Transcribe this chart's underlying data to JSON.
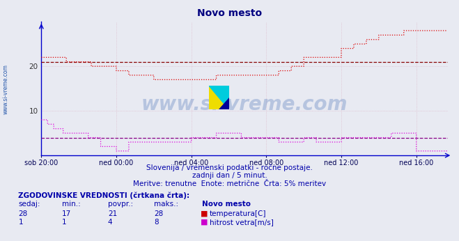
{
  "title": "Novo mesto",
  "title_color": "#000080",
  "bg_color": "#e8eaf2",
  "plot_bg_color": "#e8eaf2",
  "grid_color": "#ddaabb",
  "axis_color": "#0000cc",
  "xlabel_ticks": [
    "sob 20:00",
    "ned 00:00",
    "ned 04:00",
    "ned 08:00",
    "ned 12:00",
    "ned 16:00"
  ],
  "tick_positions": [
    0,
    240,
    480,
    720,
    960,
    1200
  ],
  "total_points": 1300,
  "ylim": [
    0,
    30
  ],
  "yticks": [
    10,
    20
  ],
  "temp_color": "#dd0000",
  "wind_color": "#dd00dd",
  "avg_temp_color": "#880000",
  "avg_wind_color": "#880088",
  "watermark_text": "www.si-vreme.com",
  "watermark_color": "#2255aa",
  "watermark_alpha": 0.25,
  "subtitle1": "Slovenija / vremenski podatki - ročne postaje.",
  "subtitle2": "zadnji dan / 5 minut.",
  "subtitle3": "Meritve: trenutne  Enote: metrične  Črta: 5% meritev",
  "subtitle_color": "#0000aa",
  "bottom_title": "ZGODOVINSKE VREDNOSTI (črtkana črta):",
  "col_headers": [
    "sedaj:",
    "min.:",
    "povpr.:",
    "maks.:",
    "Novo mesto"
  ],
  "row1_vals": [
    "28",
    "17",
    "21",
    "28"
  ],
  "row1_label": "temperatura[C]",
  "row1_color": "#cc0000",
  "row2_vals": [
    "1",
    "1",
    "4",
    "8"
  ],
  "row2_label": "hitrost vetra[m/s]",
  "row2_color": "#cc00cc",
  "avg_temp": 21,
  "avg_wind": 4,
  "left_label": "www.si-vreme.com",
  "left_label_color": "#2255aa"
}
